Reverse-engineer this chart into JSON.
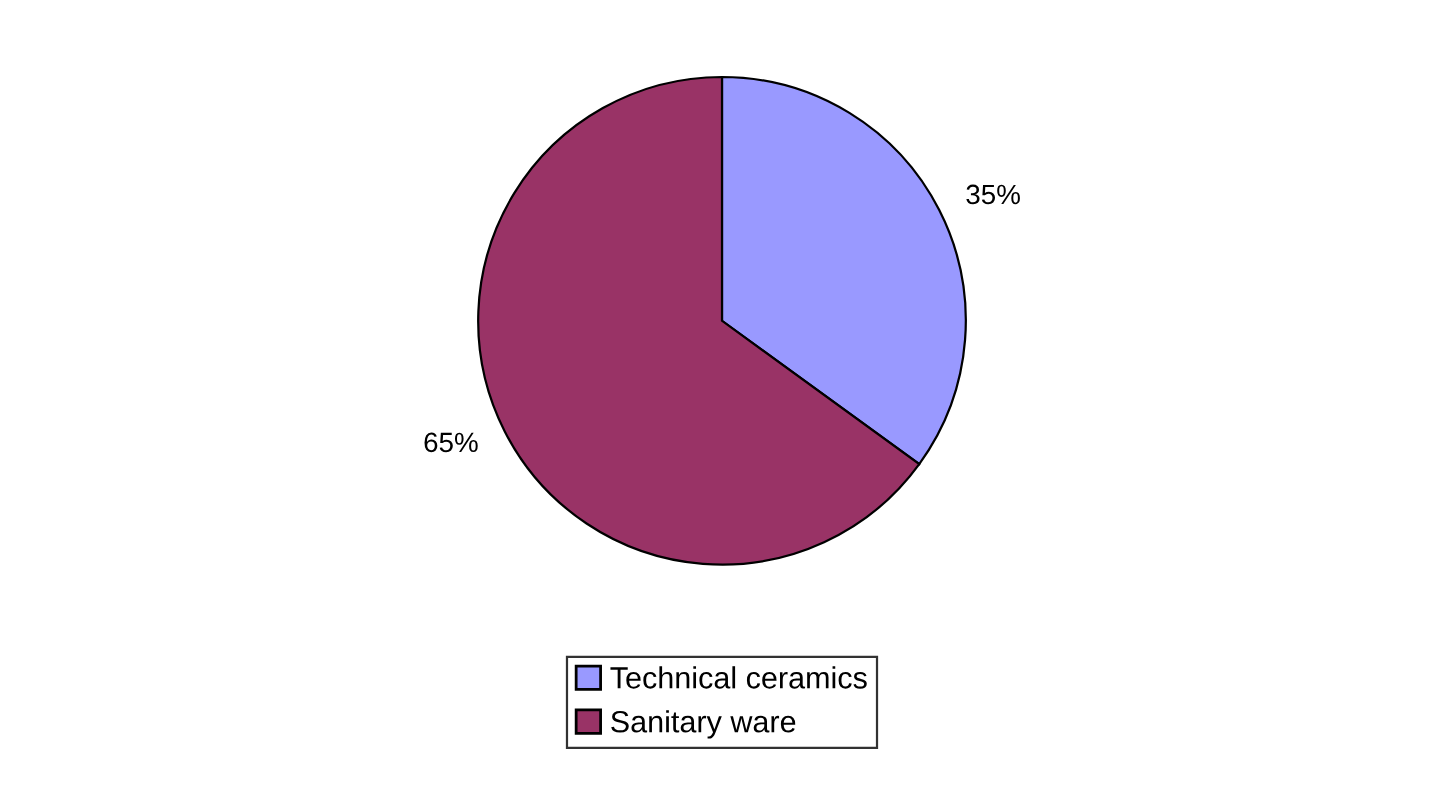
{
  "chart_data": {
    "type": "pie",
    "categories": [
      "Technical ceramics",
      "Sanitary ware"
    ],
    "values": [
      35,
      65
    ],
    "colors": [
      "#9999ff",
      "#993366"
    ],
    "value_labels": [
      "35%",
      "65%"
    ],
    "legend": "bottom"
  }
}
